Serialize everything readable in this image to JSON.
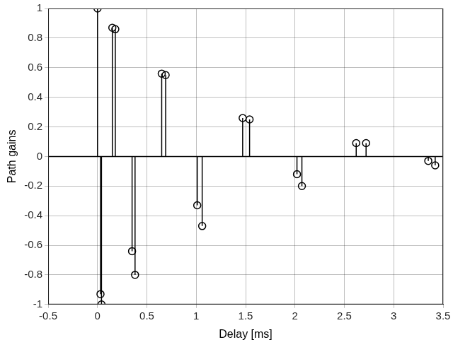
{
  "chart_data": {
    "type": "stem",
    "x_label": "Delay [ms]",
    "y_label": "Path gains",
    "x": [
      0,
      0.03,
      0.04,
      0.15,
      0.18,
      0.35,
      0.38,
      0.65,
      0.69,
      1.01,
      1.06,
      1.47,
      1.54,
      2.02,
      2.07,
      2.62,
      2.72,
      3.35,
      3.42
    ],
    "values": [
      1.0,
      -0.93,
      -1.0,
      0.87,
      0.86,
      -0.64,
      -0.8,
      0.56,
      0.55,
      -0.33,
      -0.47,
      0.26,
      0.25,
      -0.12,
      -0.2,
      0.09,
      0.09,
      -0.03,
      -0.06
    ],
    "color": "#000000",
    "marker": "circle",
    "xlim": [
      -0.5,
      3.5
    ],
    "xticks": [
      -0.5,
      0,
      0.5,
      1,
      1.5,
      2,
      2.5,
      3,
      3.5
    ],
    "ylim": [
      -1,
      1
    ],
    "yticks": [
      -1,
      -0.8,
      -0.6,
      -0.4,
      -0.2,
      0,
      0.2,
      0.4,
      0.6,
      0.8,
      1
    ],
    "grid": true
  }
}
